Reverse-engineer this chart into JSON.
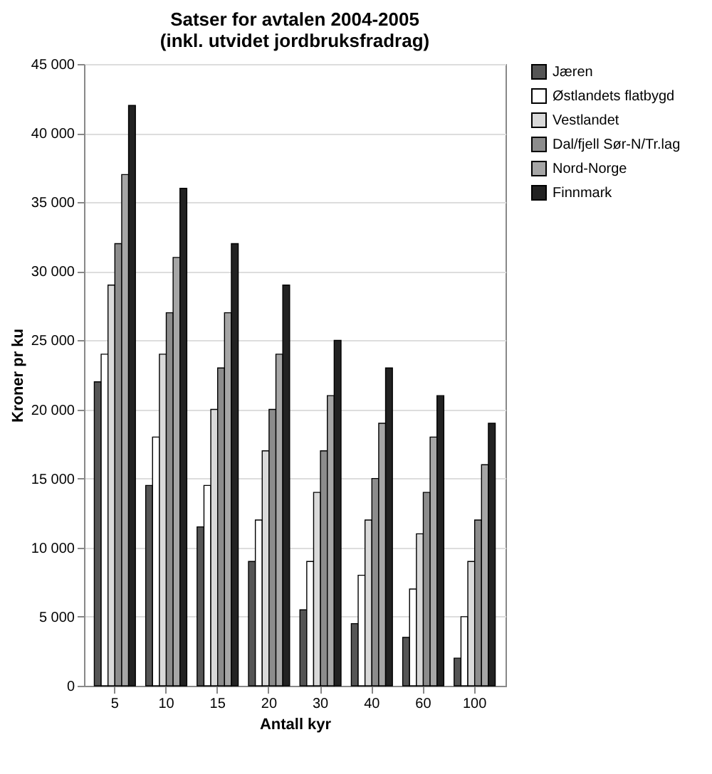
{
  "chart_data": {
    "type": "bar",
    "title": "Satser for avtalen 2004-2005\n(inkl. utvidet jordbruksfradrag)",
    "xlabel": "Antall kyr",
    "ylabel": "Kroner pr ku",
    "categories": [
      "5",
      "10",
      "15",
      "20",
      "30",
      "40",
      "60",
      "100"
    ],
    "series": [
      {
        "name": "Jæren",
        "color": "#555555",
        "values": [
          22000,
          14500,
          11500,
          9000,
          5500,
          4500,
          3500,
          2000
        ]
      },
      {
        "name": "Østlandets flatbygd",
        "color": "#ffffff",
        "values": [
          24000,
          18000,
          14500,
          12000,
          9000,
          8000,
          7000,
          5000
        ]
      },
      {
        "name": "Vestlandet",
        "color": "#d9d9d9",
        "values": [
          29000,
          24000,
          20000,
          17000,
          14000,
          12000,
          11000,
          9000
        ]
      },
      {
        "name": "Dal/fjell Sør-N/Tr.lag",
        "color": "#8c8c8c",
        "values": [
          32000,
          27000,
          23000,
          20000,
          17000,
          15000,
          14000,
          12000
        ]
      },
      {
        "name": "Nord-Norge",
        "color": "#a6a6a6",
        "values": [
          37000,
          31000,
          27000,
          24000,
          21000,
          19000,
          18000,
          16000
        ]
      },
      {
        "name": "Finnmark",
        "color": "#222222",
        "values": [
          42000,
          36000,
          32000,
          29000,
          25000,
          23000,
          21000,
          19000
        ]
      }
    ],
    "ylim": [
      0,
      45000
    ],
    "yticks": [
      {
        "value": 0,
        "label": "0"
      },
      {
        "value": 5000,
        "label": "5 000"
      },
      {
        "value": 10000,
        "label": "10 000"
      },
      {
        "value": 15000,
        "label": "15 000"
      },
      {
        "value": 20000,
        "label": "20 000"
      },
      {
        "value": 25000,
        "label": "25 000"
      },
      {
        "value": 30000,
        "label": "30 000"
      },
      {
        "value": 35000,
        "label": "35 000"
      },
      {
        "value": 40000,
        "label": "40 000"
      },
      {
        "value": 45000,
        "label": "45 000"
      }
    ],
    "grid": "y",
    "legend": "right"
  }
}
